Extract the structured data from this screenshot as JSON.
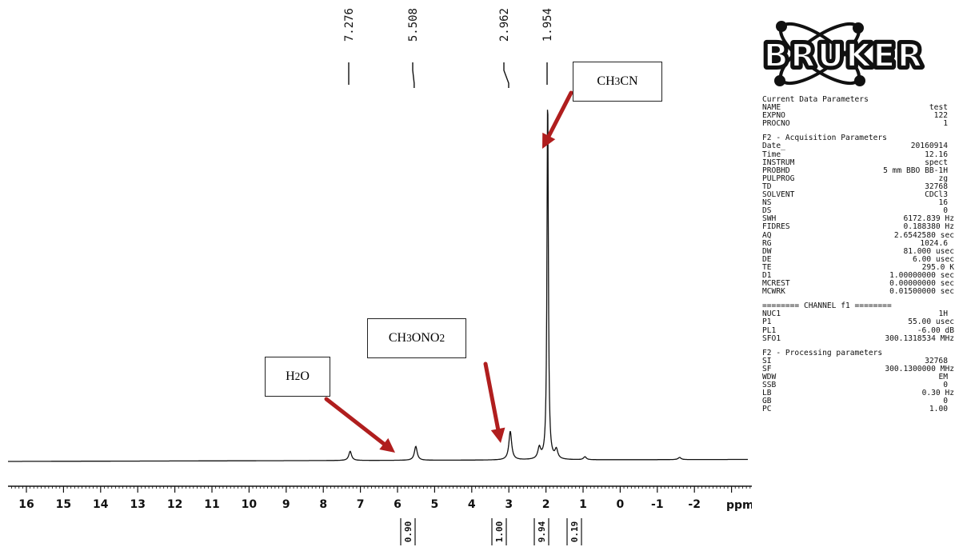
{
  "chart_data": {
    "type": "line",
    "title": "",
    "xlabel": "ppm",
    "ylabel": "",
    "xlim": [
      16.4,
      -3.8
    ],
    "x_reversed": true,
    "xticks": [
      "16",
      "15",
      "14",
      "13",
      "12",
      "11",
      "10",
      "9",
      "8",
      "7",
      "6",
      "5",
      "4",
      "3",
      "2",
      "1",
      "0",
      "-1",
      "-2"
    ],
    "peaks": [
      {
        "ppm": 7.276,
        "label": "7.276",
        "height": 0.025
      },
      {
        "ppm": 5.508,
        "label": "5.508",
        "height": 0.038
      },
      {
        "ppm": 2.962,
        "label": "2.962",
        "height": 0.078
      },
      {
        "ppm": 2.18,
        "height": 0.03
      },
      {
        "ppm": 1.954,
        "label": "1.954",
        "height": 1.0
      },
      {
        "ppm": 1.72,
        "height": 0.025
      },
      {
        "ppm": 0.95,
        "height": 0.008
      },
      {
        "ppm": -1.6,
        "height": 0.006
      }
    ],
    "integrals": [
      {
        "ppm": 5.55,
        "value": "0.90"
      },
      {
        "ppm": 2.95,
        "value": "1.00"
      },
      {
        "ppm": 1.95,
        "value": "9.94"
      },
      {
        "ppm": 0.95,
        "value": "0.19"
      }
    ],
    "annotations": [
      {
        "label_html": "H<sub>2</sub>O",
        "target_ppm": 5.5
      },
      {
        "label_html": "CH<sub>3</sub>ONO<sub>2</sub>",
        "target_ppm": 2.96
      },
      {
        "label_html": "CH<sub>3</sub>CN",
        "target_ppm": 1.95
      }
    ]
  },
  "logo": {
    "text": "BRUKER"
  },
  "parameters": {
    "current": {
      "title": "Current Data Parameters",
      "rows": [
        [
          "NAME",
          "test"
        ],
        [
          "EXPNO",
          "122"
        ],
        [
          "PROCNO",
          "1"
        ]
      ]
    },
    "acquisition": {
      "title": "F2 - Acquisition Parameters",
      "rows": [
        [
          "Date_",
          "20160914",
          ""
        ],
        [
          "Time",
          "12.16",
          ""
        ],
        [
          "INSTRUM",
          "spect",
          ""
        ],
        [
          "PROBHD",
          "5 mm BBO BB-1H",
          ""
        ],
        [
          "PULPROG",
          "zg",
          ""
        ],
        [
          "TD",
          "32768",
          ""
        ],
        [
          "SOLVENT",
          "CDCl3",
          ""
        ],
        [
          "NS",
          "16",
          ""
        ],
        [
          "DS",
          "0",
          ""
        ],
        [
          "SWH",
          "6172.839",
          "Hz"
        ],
        [
          "FIDRES",
          "0.188380",
          "Hz"
        ],
        [
          "AQ",
          "2.6542580",
          "sec"
        ],
        [
          "RG",
          "1024.6",
          ""
        ],
        [
          "DW",
          "81.000",
          "usec"
        ],
        [
          "DE",
          "6.00",
          "usec"
        ],
        [
          "TE",
          "295.0",
          "K"
        ],
        [
          "D1",
          "1.00000000",
          "sec"
        ],
        [
          "MCREST",
          "0.00000000",
          "sec"
        ],
        [
          "MCWRK",
          "0.01500000",
          "sec"
        ]
      ]
    },
    "channel": {
      "title": "======== CHANNEL f1 ========",
      "rows": [
        [
          "NUC1",
          "1H",
          ""
        ],
        [
          "P1",
          "55.00",
          "usec"
        ],
        [
          "PL1",
          "-6.00",
          "dB"
        ],
        [
          "SFO1",
          "300.1318534",
          "MHz"
        ]
      ]
    },
    "processing": {
      "title": "F2 - Processing parameters",
      "rows": [
        [
          "SI",
          "32768",
          ""
        ],
        [
          "SF",
          "300.1300000",
          "MHz"
        ],
        [
          "WDW",
          "EM",
          ""
        ],
        [
          "SSB",
          "0",
          ""
        ],
        [
          "LB",
          "0.30",
          "Hz"
        ],
        [
          "GB",
          "0",
          ""
        ],
        [
          "PC",
          "1.00",
          ""
        ]
      ]
    }
  }
}
